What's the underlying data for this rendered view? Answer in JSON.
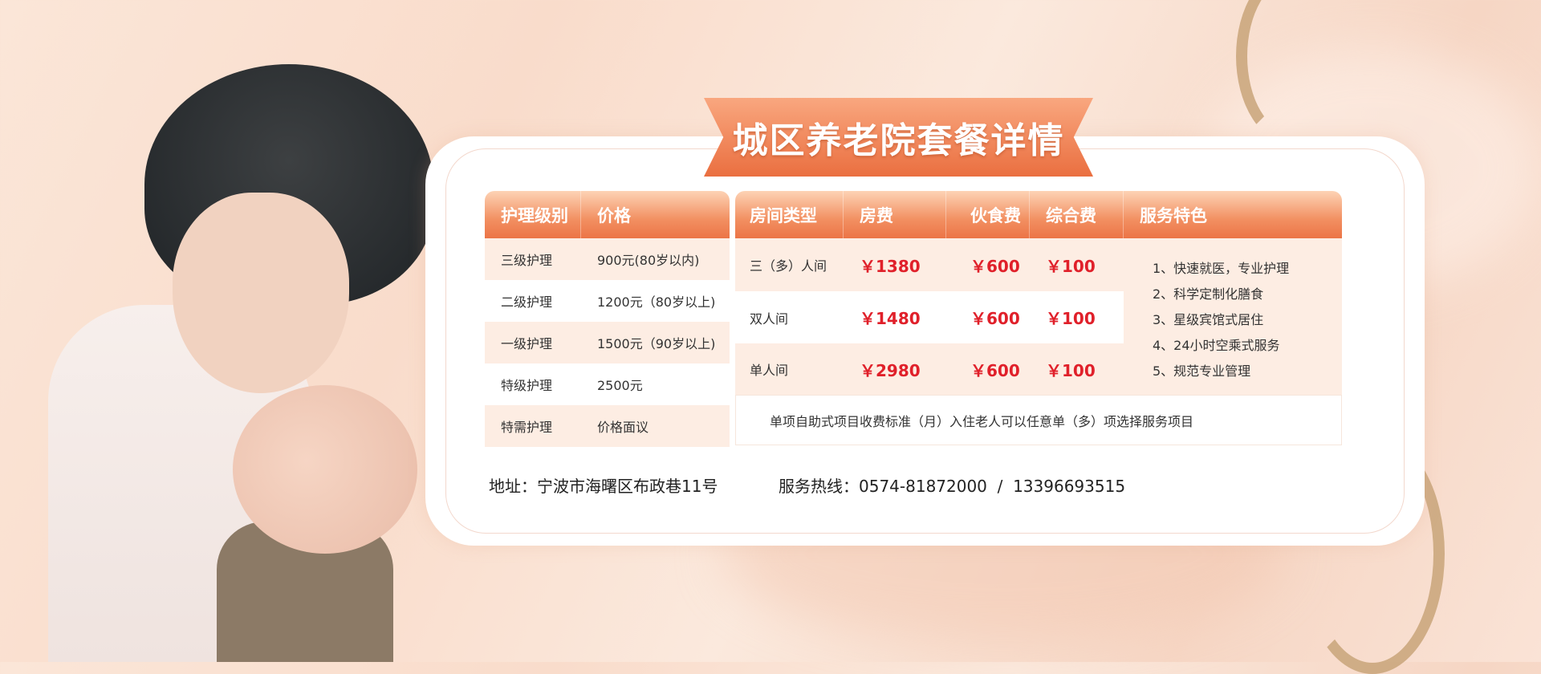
{
  "title": "城区养老院套餐详情",
  "care_table": {
    "headers": [
      "护理级别",
      "价格"
    ],
    "rows": [
      [
        "三级护理",
        "900元(80岁以内)"
      ],
      [
        "二级护理",
        "1200元（80岁以上)"
      ],
      [
        "一级护理",
        "1500元（90岁以上)"
      ],
      [
        "特级护理",
        "2500元"
      ],
      [
        "特需护理",
        "价格面议"
      ]
    ]
  },
  "room_table": {
    "headers": [
      "房间类型",
      "房费",
      "伙食费",
      "综合费",
      "服务特色"
    ],
    "rows": [
      [
        "三（多）人间",
        "￥1380",
        "￥600",
        "￥100"
      ],
      [
        "双人间",
        "￥1480",
        "￥600",
        "￥100"
      ],
      [
        "单人间",
        "￥2980",
        "￥600",
        "￥100"
      ]
    ],
    "features": [
      "1、快速就医，专业护理",
      "2、科学定制化膳食",
      "3、星级宾馆式居住",
      "4、24小时空乘式服务",
      "5、规范专业管理"
    ],
    "note": "单项自助式项目收费标准（月）入住老人可以任意单（多）项选择服务项目"
  },
  "address": "地址：宁波市海曙区布政巷11号",
  "hotline": "服务热线：0574-81872000  /  13396693515",
  "colors": {
    "accent": "#ec7446",
    "price": "#e0202a",
    "row_peach": "#fdede3"
  }
}
